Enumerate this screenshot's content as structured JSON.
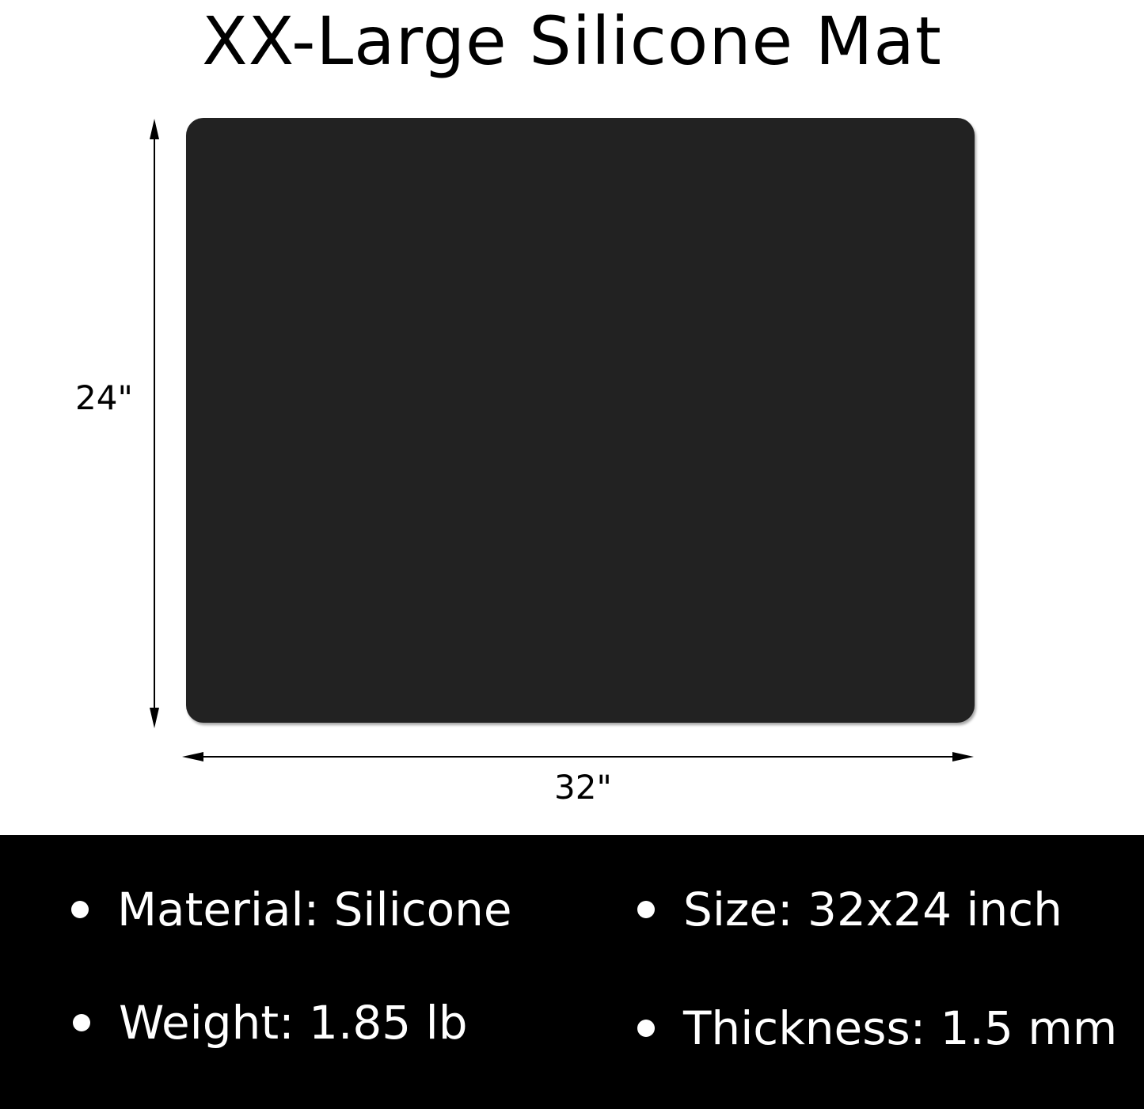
{
  "title": "XX-Large Silicone Mat",
  "dimensions": {
    "height_label": "24\"",
    "width_label": "32\""
  },
  "mat_color": "#222222",
  "specs": [
    {
      "label": "Material: Silicone"
    },
    {
      "label": "Size: 32x24 inch"
    },
    {
      "label": "Weight: 1.85 lb"
    },
    {
      "label": "Thickness: 1.5 mm"
    }
  ]
}
